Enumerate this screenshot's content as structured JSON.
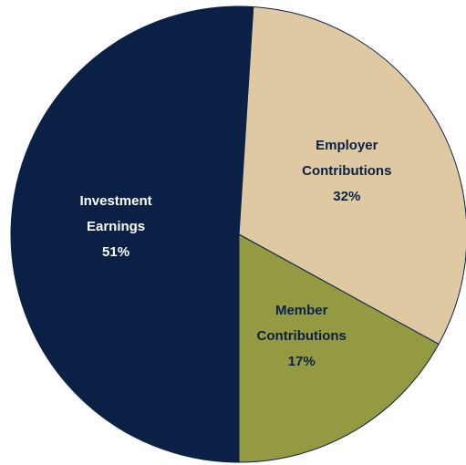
{
  "chart_data": {
    "type": "pie",
    "categories": [
      "Employer Contributions",
      "Member Contributions",
      "Investment Earnings"
    ],
    "values": [
      32,
      17,
      51
    ],
    "value_labels": [
      "32%",
      "17%",
      "51%"
    ],
    "colors": [
      "#dfc9a3",
      "#949a41",
      "#0a2145"
    ],
    "label_colors": [
      "#0a2145",
      "#0a2145",
      "#ffffff"
    ]
  }
}
